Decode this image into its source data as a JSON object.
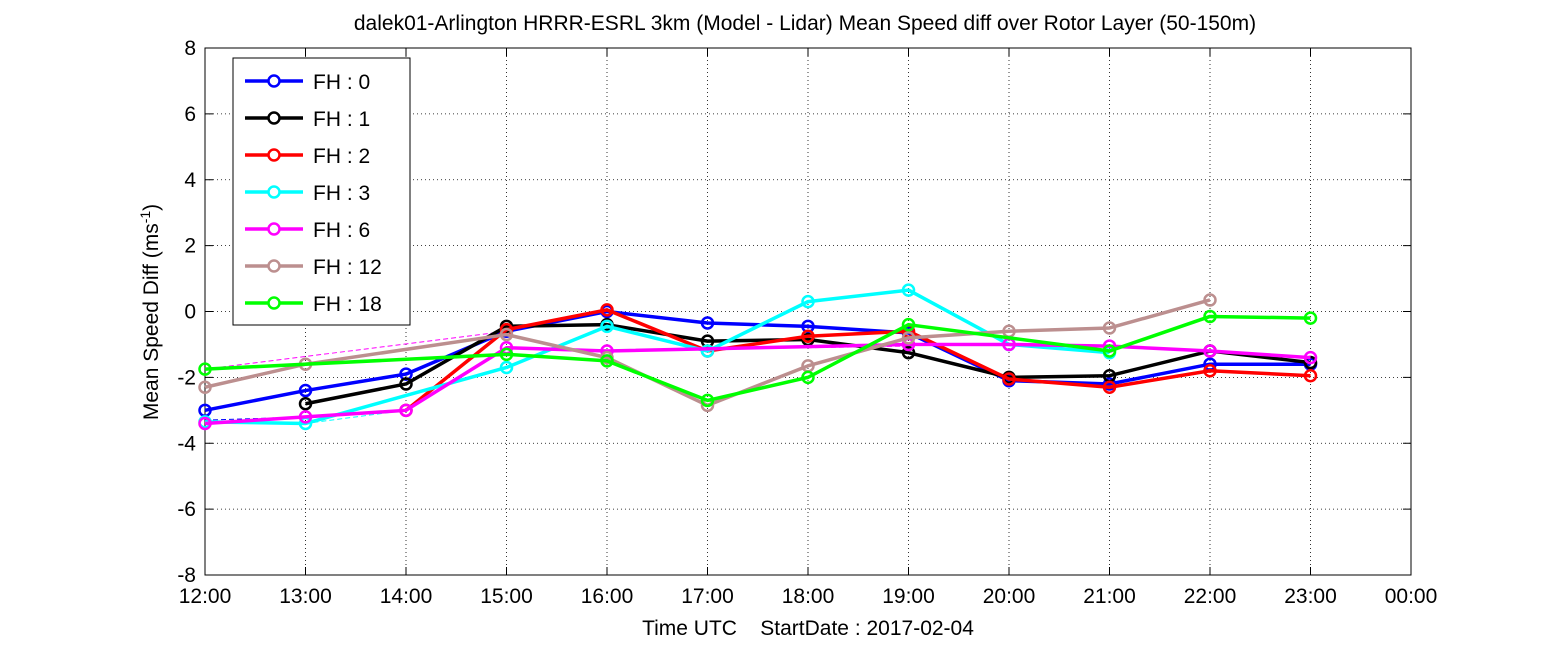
{
  "chart_data": {
    "type": "line",
    "title": "dalek01-Arlington HRRR-ESRL 3km (Model - Lidar) Mean Speed diff over Rotor Layer (50-150m)",
    "xlabel": "Time UTC    StartDate : 2017-02-04",
    "ylabel_main": "Mean Speed Diff (ms",
    "ylabel_sup": "-1",
    "ylabel_close": ")",
    "x_ticks": [
      "12:00",
      "13:00",
      "14:00",
      "15:00",
      "16:00",
      "17:00",
      "18:00",
      "19:00",
      "20:00",
      "21:00",
      "22:00",
      "23:00",
      "00:00"
    ],
    "y_ticks": [
      "-8",
      "-6",
      "-4",
      "-2",
      "0",
      "2",
      "4",
      "6",
      "8"
    ],
    "ylim": [
      -8,
      8
    ],
    "xlim_hours": [
      12,
      24
    ],
    "grid": true,
    "legend_position": "top-left",
    "series": [
      {
        "name": "FH : 0",
        "color": "#0000ff",
        "x": [
          12,
          13,
          14,
          15,
          16,
          17,
          18,
          19,
          20,
          21,
          22,
          23
        ],
        "y": [
          -3.0,
          -2.4,
          -1.9,
          -0.6,
          0.0,
          -0.35,
          -0.45,
          -0.65,
          -2.1,
          -2.2,
          -1.6,
          -1.6
        ]
      },
      {
        "name": "FH : 1",
        "color": "#000000",
        "x": [
          13,
          14,
          15,
          16,
          17,
          18,
          19,
          20,
          21,
          22,
          23
        ],
        "y": [
          -2.8,
          -2.2,
          -0.45,
          -0.4,
          -0.9,
          -0.85,
          -1.25,
          -2.0,
          -1.95,
          -1.2,
          -1.55
        ]
      },
      {
        "name": "FH : 2",
        "color": "#ff0000",
        "x": [
          14,
          15,
          16,
          17,
          18,
          19,
          20,
          21,
          22,
          23
        ],
        "y": [
          -3.0,
          -0.55,
          0.05,
          -1.2,
          -0.75,
          -0.6,
          -2.05,
          -2.3,
          -1.8,
          -1.95
        ]
      },
      {
        "name": "FH : 3",
        "color": "#00ffff",
        "x": [
          12,
          13,
          15,
          16,
          17,
          18,
          19,
          20,
          21
        ],
        "y": [
          -3.35,
          -3.4,
          -1.7,
          -0.45,
          -1.2,
          0.3,
          0.65,
          -1.0,
          -1.25
        ],
        "dashed_from": [
          13,
          14,
          -3.4,
          -3.0
        ]
      },
      {
        "name": "FH : 6",
        "color": "#ff00ff",
        "x": [
          12,
          13,
          14,
          15,
          16,
          19,
          20,
          21,
          22,
          23
        ],
        "y": [
          -3.4,
          -3.2,
          -3.0,
          -1.1,
          -1.2,
          -1.0,
          -1.0,
          -1.05,
          -1.2,
          -1.4
        ]
      },
      {
        "name": "FH : 12",
        "color": "#bc8f8f",
        "x": [
          12,
          13,
          15,
          16,
          17,
          18,
          19,
          20,
          21,
          22
        ],
        "y": [
          -2.3,
          -1.6,
          -0.7,
          -1.4,
          -2.85,
          -1.65,
          -0.8,
          -0.6,
          -0.5,
          0.35
        ]
      },
      {
        "name": "FH : 18",
        "color": "#00ff00",
        "x": [
          12,
          15,
          16,
          17,
          18,
          19,
          21,
          22,
          23
        ],
        "y": [
          -1.75,
          -1.3,
          -1.5,
          -2.7,
          -2.0,
          -0.4,
          -1.2,
          -0.15,
          -0.2
        ]
      }
    ],
    "dashed_connectors": [
      {
        "color": "#00ff00",
        "x": [
          12,
          15
        ],
        "y": [
          -1.75,
          -1.3
        ]
      },
      {
        "color": "#bc8f8f",
        "x": [
          13,
          15
        ],
        "y": [
          -1.6,
          -0.7
        ]
      },
      {
        "color": "#ff00ff",
        "x": [
          12,
          15
        ],
        "y": [
          -1.75,
          -0.6
        ]
      },
      {
        "color": "#ff00ff",
        "x": [
          16,
          19
        ],
        "y": [
          -1.2,
          -1.05
        ]
      },
      {
        "color": "#00ff00",
        "x": [
          19,
          21
        ],
        "y": [
          -0.4,
          -1.2
        ]
      },
      {
        "color": "#00ffff",
        "x": [
          13,
          14
        ],
        "y": [
          -3.4,
          -3.0
        ]
      },
      {
        "color": "#0000ff",
        "x": [
          12,
          13
        ],
        "y": [
          -3.3,
          -3.2
        ]
      }
    ]
  }
}
